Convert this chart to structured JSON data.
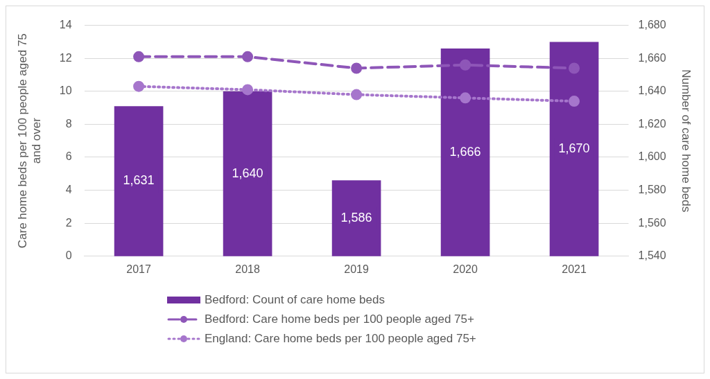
{
  "chart_data": {
    "type": "bar",
    "categories": [
      "2017",
      "2018",
      "2019",
      "2020",
      "2021"
    ],
    "ylabel": "Care home beds per 100 people aged 75 and over",
    "y2label": "Number of care home beds",
    "ylim": [
      0,
      14
    ],
    "yticks": [
      0,
      2,
      4,
      6,
      8,
      10,
      12,
      14
    ],
    "y2lim": [
      1540,
      1680
    ],
    "y2ticks": [
      {
        "value": 1540,
        "label": "1,540"
      },
      {
        "value": 1560,
        "label": "1,560"
      },
      {
        "value": 1580,
        "label": "1,580"
      },
      {
        "value": 1600,
        "label": "1,600"
      },
      {
        "value": 1620,
        "label": "1,620"
      },
      {
        "value": 1640,
        "label": "1,640"
      },
      {
        "value": 1660,
        "label": "1,660"
      },
      {
        "value": 1680,
        "label": "1,680"
      }
    ],
    "grid": "y",
    "legend": "bottom",
    "marker": "circle",
    "series": [
      {
        "name": "Bedford: Count of care home beds",
        "axis": "y2",
        "color": "#7030a0",
        "values": [
          1631,
          1640,
          1586,
          1666,
          1670
        ],
        "value_labels": [
          "1,631",
          "1,640",
          "1,586",
          "1,666",
          "1,670"
        ]
      },
      {
        "name": "Bedford: Care home beds per 100 people aged 75+",
        "type": "line",
        "line_style": "dashed",
        "color": "#8e56b8",
        "values": [
          12.1,
          12.1,
          11.4,
          11.6,
          11.4
        ]
      },
      {
        "name": "England: Care home beds per 100 people aged 75+",
        "type": "line",
        "line_style": "dotted",
        "color": "#a676cc",
        "values": [
          10.3,
          10.1,
          9.8,
          9.6,
          9.4
        ]
      }
    ]
  }
}
